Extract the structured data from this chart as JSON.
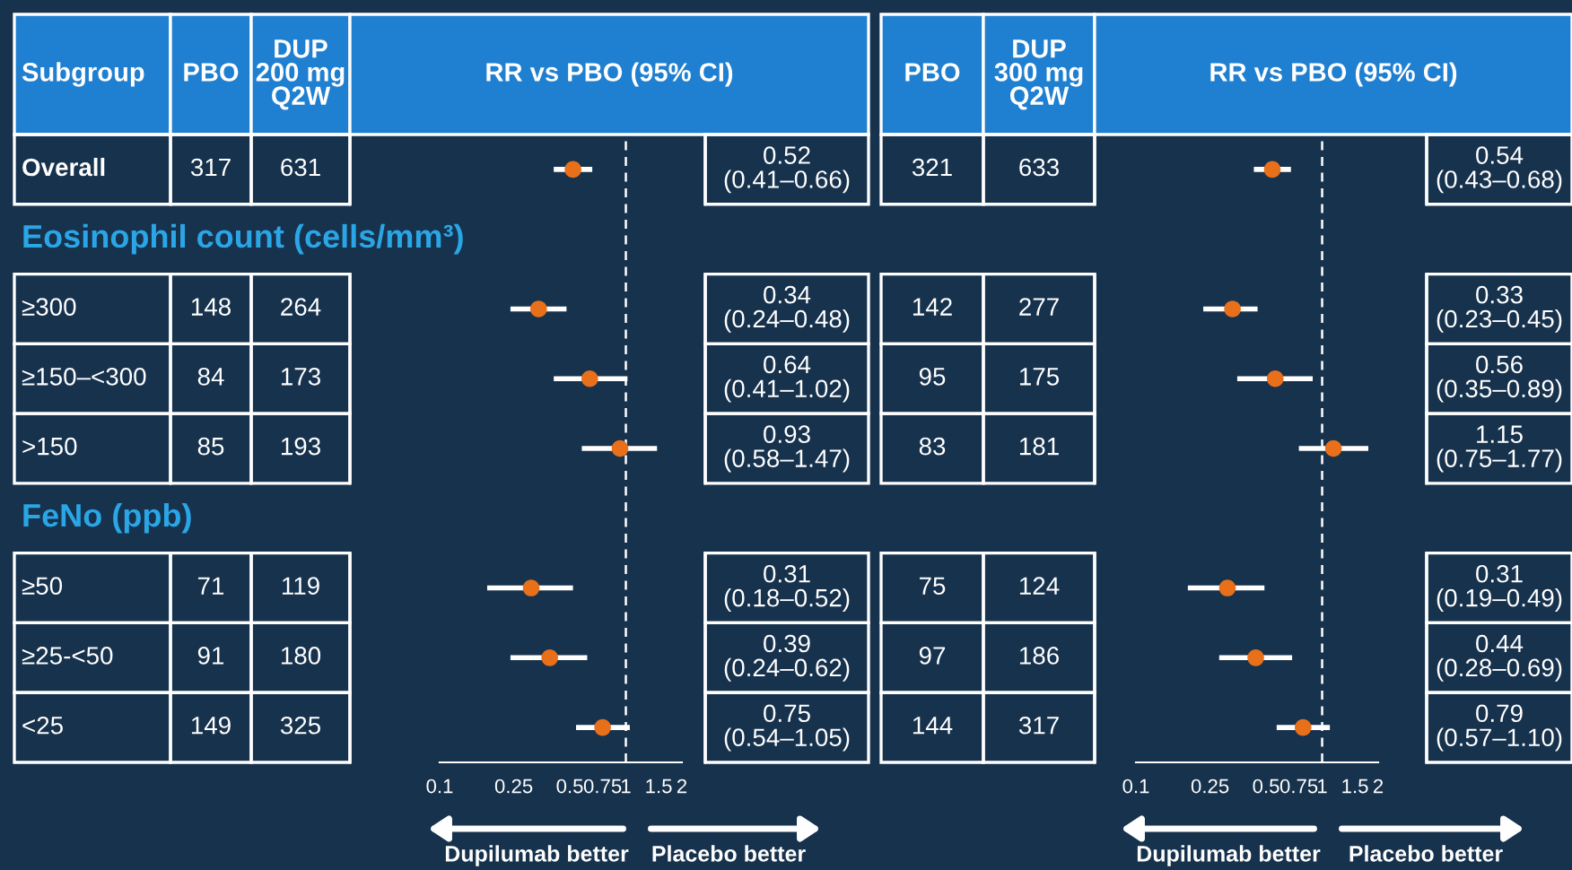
{
  "chart_data": [
    {
      "type": "other",
      "ylabel": "Subgroup",
      "data_labels": true,
      "categories": [
        "Overall",
        "Eosinophil count (cells/mm³)",
        "≥300",
        "≥150–<300",
        ">150",
        "FeNo (ppb)",
        "≥50",
        "≥25-<50",
        "<25"
      ],
      "series": [
        {
          "name": "PBO",
          "values": [
            317,
            null,
            148,
            84,
            85,
            null,
            71,
            91,
            149
          ]
        },
        {
          "name": "DUP\n200 mg\nQ2W",
          "values": [
            631,
            null,
            264,
            173,
            193,
            null,
            119,
            180,
            325
          ]
        },
        {
          "name": "PBO",
          "values": [
            321,
            null,
            142,
            95,
            83,
            null,
            75,
            97,
            144
          ]
        },
        {
          "name": "DUP\n300 mg\nQ2W",
          "values": [
            633,
            null,
            277,
            175,
            181,
            null,
            124,
            186,
            317
          ]
        }
      ]
    },
    {
      "type": "scatter",
      "orientation": "horizontal",
      "title": "RR vs PBO (95% CI)",
      "log": "x",
      "marker": "circle",
      "tick_labels": "x",
      "categories": [
        null,
        null,
        null,
        null,
        null,
        null,
        null,
        null,
        null
      ],
      "series": [
        {
          "color": "#e8701a",
          "values": [
            0.52,
            null,
            0.34,
            0.64,
            0.93,
            null,
            0.31,
            0.39,
            0.75
          ],
          "errors": [
            [
              0.41,
              0.66
            ],
            null,
            [
              0.24,
              0.48
            ],
            [
              0.41,
              1.02
            ],
            [
              0.58,
              1.47
            ],
            null,
            [
              0.18,
              0.52
            ],
            [
              0.24,
              0.62
            ],
            [
              0.54,
              1.05
            ]
          ],
          "value_labels": [
            "0.52\n(0.41–0.66)",
            null,
            "0.34\n(0.24–0.48)",
            "0.64\n(0.41–1.02)",
            "0.93\n(0.58–1.47)",
            null,
            "0.31\n(0.18–0.52)",
            "0.39\n(0.24–0.62)",
            "0.75\n(0.54–1.05)"
          ]
        }
      ],
      "xlim": [
        0.1,
        2
      ],
      "xticks": [
        0.1,
        0.25,
        0.5,
        0.75,
        1,
        1.5,
        2
      ],
      "ref_lines": [
        {
          "axis": "x",
          "value": 1,
          "color": "#ffffff",
          "line_style": "dashed"
        }
      ],
      "annotations": [
        "Dupilumab better",
        "Placebo better"
      ]
    },
    {
      "type": "scatter",
      "orientation": "horizontal",
      "title": "RR vs PBO (95% CI)",
      "log": "x",
      "marker": "circle",
      "tick_labels": "x",
      "categories": [
        null,
        null,
        null,
        null,
        null,
        null,
        null,
        null,
        null
      ],
      "series": [
        {
          "color": "#e8701a",
          "values": [
            0.54,
            null,
            0.33,
            0.56,
            1.15,
            null,
            0.31,
            0.44,
            0.79
          ],
          "errors": [
            [
              0.43,
              0.68
            ],
            null,
            [
              0.23,
              0.45
            ],
            [
              0.35,
              0.89
            ],
            [
              0.75,
              1.77
            ],
            null,
            [
              0.19,
              0.49
            ],
            [
              0.28,
              0.69
            ],
            [
              0.57,
              1.1
            ]
          ],
          "value_labels": [
            "0.54\n(0.43–0.68)",
            null,
            "0.33\n(0.23–0.45)",
            "0.56\n(0.35–0.89)",
            "1.15\n(0.75–1.77)",
            null,
            "0.31\n(0.19–0.49)",
            "0.44\n(0.28–0.69)",
            "0.79\n(0.57–1.10)"
          ]
        }
      ],
      "xlim": [
        0.1,
        2
      ],
      "xticks": [
        0.1,
        0.25,
        0.5,
        0.75,
        1,
        1.5,
        2
      ],
      "ref_lines": [
        {
          "axis": "x",
          "value": 1,
          "color": "#ffffff",
          "line_style": "dashed"
        }
      ],
      "annotations": [
        "Dupilumab better",
        "Placebo better"
      ]
    }
  ]
}
